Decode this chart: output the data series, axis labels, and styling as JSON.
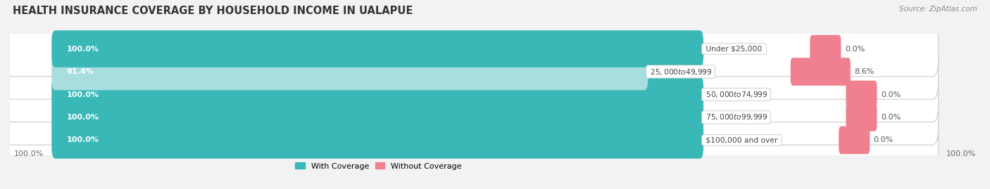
{
  "title": "HEALTH INSURANCE COVERAGE BY HOUSEHOLD INCOME IN UALAPUE",
  "source": "Source: ZipAtlas.com",
  "categories": [
    "Under $25,000",
    "$25,000 to $49,999",
    "$50,000 to $74,999",
    "$75,000 to $99,999",
    "$100,000 and over"
  ],
  "with_coverage": [
    100.0,
    91.4,
    100.0,
    100.0,
    100.0
  ],
  "without_coverage": [
    0.0,
    8.6,
    0.0,
    0.0,
    0.0
  ],
  "color_with": "#3ab8b8",
  "color_without": "#f08090",
  "color_with_light": "#a8dede",
  "bar_bg_color": "#e0e0e0",
  "row_bg_color": "#ececec",
  "title_fontsize": 10.5,
  "label_fontsize": 8.0,
  "tick_fontsize": 8.0,
  "source_fontsize": 7.5,
  "fig_bg": "#f2f2f2"
}
